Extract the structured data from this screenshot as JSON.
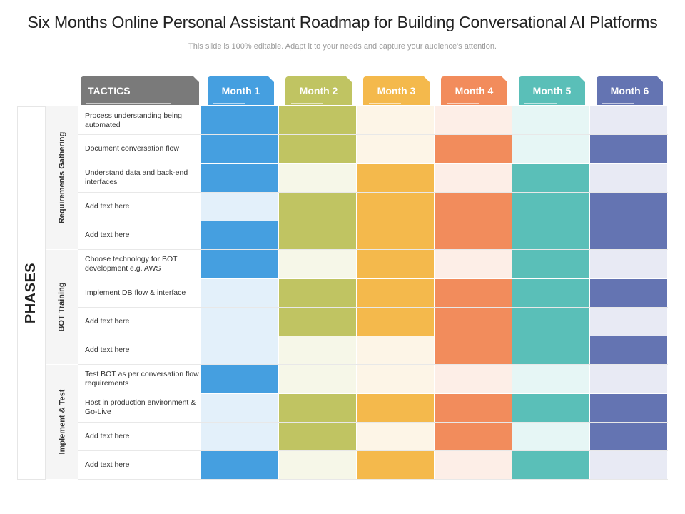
{
  "title": "Six Months Online Personal Assistant Roadmap for Building Conversational AI Platforms",
  "subtitle": "This slide is 100% editable. Adapt it to your needs and capture your audience's attention.",
  "phases_label": "PHASES",
  "tactics_label": "TACTICS",
  "months": [
    {
      "label": "Month 1",
      "color": "#459fe0",
      "light": "#e3f0fa"
    },
    {
      "label": "Month 2",
      "color": "#c0c462",
      "light": "#f6f7e8"
    },
    {
      "label": "Month 3",
      "color": "#f4b94c",
      "light": "#fdf5e7"
    },
    {
      "label": "Month 4",
      "color": "#f28c5c",
      "light": "#fdeee7"
    },
    {
      "label": "Month 5",
      "color": "#5abfb8",
      "light": "#e6f6f5"
    },
    {
      "label": "Month 6",
      "color": "#6474b2",
      "light": "#e8eaf4"
    }
  ],
  "groups": [
    {
      "label": "Requirements Gathering",
      "rows": [
        {
          "text": "Process understanding being automated",
          "active": [
            true,
            true,
            false,
            false,
            false,
            false
          ]
        },
        {
          "text": "Document conversation flow",
          "active": [
            true,
            true,
            false,
            true,
            false,
            true
          ]
        },
        {
          "text": "Understand data and back-end interfaces",
          "active": [
            true,
            false,
            true,
            false,
            true,
            false
          ]
        },
        {
          "text": "Add text here",
          "active": [
            false,
            true,
            true,
            true,
            true,
            true
          ]
        },
        {
          "text": "Add text here",
          "active": [
            true,
            true,
            true,
            true,
            true,
            true
          ]
        }
      ]
    },
    {
      "label": "BOT Training",
      "rows": [
        {
          "text": "Choose technology for BOT development e.g. AWS",
          "active": [
            true,
            false,
            true,
            false,
            true,
            false
          ]
        },
        {
          "text": "Implement DB flow & interface",
          "active": [
            false,
            true,
            true,
            true,
            true,
            true
          ]
        },
        {
          "text": "Add text here",
          "active": [
            false,
            true,
            true,
            true,
            true,
            false
          ]
        },
        {
          "text": "Add text here",
          "active": [
            false,
            false,
            false,
            true,
            true,
            true
          ]
        }
      ]
    },
    {
      "label": "Implement & Test",
      "rows": [
        {
          "text": "Test BOT as per conversation flow requirements",
          "active": [
            true,
            false,
            false,
            false,
            false,
            false
          ]
        },
        {
          "text": "Host in production environment & Go-Live",
          "active": [
            false,
            true,
            true,
            true,
            true,
            true
          ]
        },
        {
          "text": "Add text here",
          "active": [
            false,
            true,
            false,
            true,
            false,
            true
          ]
        },
        {
          "text": "Add text here",
          "active": [
            true,
            false,
            true,
            false,
            true,
            false
          ]
        }
      ]
    }
  ]
}
